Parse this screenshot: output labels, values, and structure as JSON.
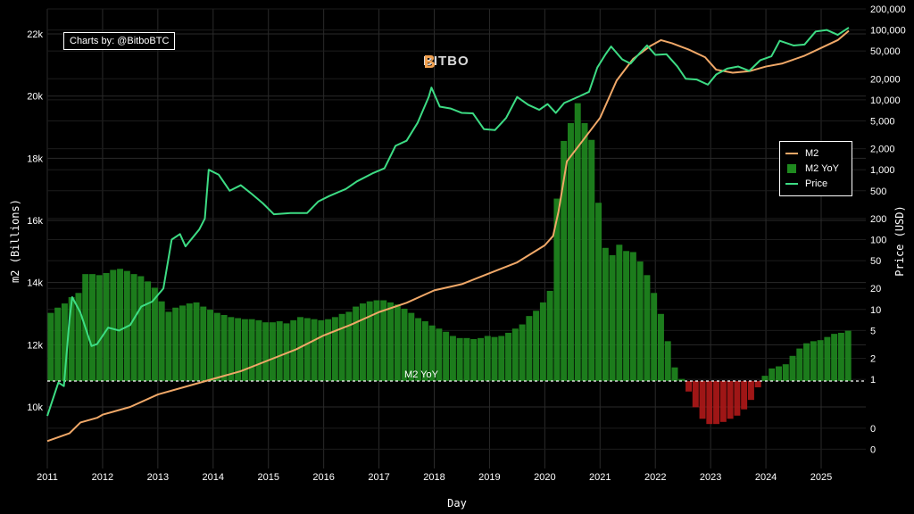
{
  "watermark": {
    "logo_text": "BITBO"
  },
  "credit": {
    "text": "Charts by: @BitboBTC"
  },
  "legend": {
    "placement": "right",
    "items": [
      {
        "label": "M2",
        "color": "#f0a868"
      },
      {
        "label": "M2 YoY",
        "color": "#1f8a1f"
      },
      {
        "label": "Price",
        "color": "#3ddc84"
      }
    ]
  },
  "chart_data": {
    "type": "line",
    "xlabel": "Day",
    "ylabel_left": "m2 (Billions)",
    "ylabel_right": "Price (USD)",
    "x_ticks": [
      "2011",
      "2012",
      "2013",
      "2014",
      "2015",
      "2016",
      "2017",
      "2018",
      "2019",
      "2020",
      "2021",
      "2022",
      "2023",
      "2024",
      "2025"
    ],
    "y_left_ticks": [
      "10k",
      "12k",
      "14k",
      "16k",
      "18k",
      "20k",
      "22k"
    ],
    "y_left_range": [
      8800,
      22400
    ],
    "y_right_ticks": [
      "0",
      "0",
      "1",
      "2",
      "5",
      "10",
      "20",
      "50",
      "100",
      "200",
      "500",
      "1,000",
      "2,000",
      "5,000",
      "10,000",
      "20,000",
      "50,000",
      "100,000",
      "200,000"
    ],
    "y_right_scale": "log",
    "grid": true,
    "reference_line": {
      "label": "M2 YoY",
      "value": 0
    },
    "series": [
      {
        "name": "M2",
        "color": "#f0a868",
        "points": [
          [
            2011.0,
            8900
          ],
          [
            2011.4,
            9150
          ],
          [
            2011.6,
            9500
          ],
          [
            2011.9,
            9650
          ],
          [
            2012.0,
            9750
          ],
          [
            2012.5,
            10000
          ],
          [
            2013.0,
            10400
          ],
          [
            2013.5,
            10650
          ],
          [
            2014.0,
            10900
          ],
          [
            2014.5,
            11150
          ],
          [
            2015.0,
            11500
          ],
          [
            2015.5,
            11850
          ],
          [
            2016.0,
            12300
          ],
          [
            2016.5,
            12650
          ],
          [
            2017.0,
            13050
          ],
          [
            2017.5,
            13350
          ],
          [
            2018.0,
            13750
          ],
          [
            2018.5,
            13950
          ],
          [
            2019.0,
            14300
          ],
          [
            2019.5,
            14650
          ],
          [
            2020.0,
            15200
          ],
          [
            2020.15,
            15500
          ],
          [
            2020.25,
            16300
          ],
          [
            2020.4,
            17900
          ],
          [
            2020.7,
            18600
          ],
          [
            2021.0,
            19300
          ],
          [
            2021.3,
            20500
          ],
          [
            2021.6,
            21200
          ],
          [
            2021.9,
            21600
          ],
          [
            2022.1,
            21800
          ],
          [
            2022.3,
            21700
          ],
          [
            2022.6,
            21500
          ],
          [
            2022.9,
            21250
          ],
          [
            2023.1,
            20850
          ],
          [
            2023.4,
            20750
          ],
          [
            2023.7,
            20800
          ],
          [
            2024.0,
            20950
          ],
          [
            2024.3,
            21050
          ],
          [
            2024.7,
            21300
          ],
          [
            2025.0,
            21550
          ],
          [
            2025.3,
            21800
          ],
          [
            2025.5,
            22100
          ]
        ]
      },
      {
        "name": "Price",
        "color": "#3ddc84",
        "points": [
          [
            2011.0,
            0.3
          ],
          [
            2011.2,
            0.9
          ],
          [
            2011.3,
            0.8
          ],
          [
            2011.4,
            7
          ],
          [
            2011.45,
            15
          ],
          [
            2011.6,
            9
          ],
          [
            2011.8,
            3
          ],
          [
            2011.9,
            3.2
          ],
          [
            2012.1,
            5.5
          ],
          [
            2012.3,
            5
          ],
          [
            2012.5,
            6
          ],
          [
            2012.7,
            11
          ],
          [
            2012.9,
            13
          ],
          [
            2013.1,
            20
          ],
          [
            2013.25,
            100
          ],
          [
            2013.4,
            120
          ],
          [
            2013.5,
            80
          ],
          [
            2013.75,
            140
          ],
          [
            2013.85,
            200
          ],
          [
            2013.92,
            1000
          ],
          [
            2014.1,
            850
          ],
          [
            2014.3,
            500
          ],
          [
            2014.5,
            600
          ],
          [
            2014.7,
            450
          ],
          [
            2014.9,
            330
          ],
          [
            2015.1,
            230
          ],
          [
            2015.4,
            240
          ],
          [
            2015.7,
            240
          ],
          [
            2015.9,
            350
          ],
          [
            2016.1,
            420
          ],
          [
            2016.4,
            530
          ],
          [
            2016.6,
            680
          ],
          [
            2016.9,
            900
          ],
          [
            2017.1,
            1050
          ],
          [
            2017.3,
            2200
          ],
          [
            2017.5,
            2600
          ],
          [
            2017.7,
            4700
          ],
          [
            2017.9,
            11000
          ],
          [
            2017.95,
            15000
          ],
          [
            2018.1,
            8000
          ],
          [
            2018.3,
            7500
          ],
          [
            2018.5,
            6500
          ],
          [
            2018.7,
            6400
          ],
          [
            2018.9,
            3800
          ],
          [
            2019.1,
            3700
          ],
          [
            2019.3,
            5500
          ],
          [
            2019.5,
            11000
          ],
          [
            2019.7,
            8500
          ],
          [
            2019.9,
            7200
          ],
          [
            2020.05,
            8700
          ],
          [
            2020.2,
            6500
          ],
          [
            2020.35,
            9000
          ],
          [
            2020.6,
            11000
          ],
          [
            2020.8,
            13000
          ],
          [
            2020.95,
            29000
          ],
          [
            2021.1,
            45000
          ],
          [
            2021.2,
            58000
          ],
          [
            2021.4,
            38000
          ],
          [
            2021.55,
            33000
          ],
          [
            2021.7,
            45000
          ],
          [
            2021.85,
            60000
          ],
          [
            2022.0,
            44000
          ],
          [
            2022.2,
            45000
          ],
          [
            2022.4,
            30000
          ],
          [
            2022.55,
            20000
          ],
          [
            2022.75,
            19500
          ],
          [
            2022.95,
            16500
          ],
          [
            2023.1,
            23000
          ],
          [
            2023.3,
            28000
          ],
          [
            2023.5,
            30000
          ],
          [
            2023.7,
            26000
          ],
          [
            2023.9,
            37000
          ],
          [
            2024.1,
            42000
          ],
          [
            2024.25,
            70000
          ],
          [
            2024.5,
            60000
          ],
          [
            2024.7,
            62000
          ],
          [
            2024.9,
            95000
          ],
          [
            2025.1,
            100000
          ],
          [
            2025.3,
            85000
          ],
          [
            2025.5,
            108000
          ]
        ]
      },
      {
        "name": "M2 YoY",
        "color": "#1f8a1f",
        "negative_color": "#b01818",
        "unit": "percent",
        "start_year": 2011.0,
        "end_year": 2025.55,
        "values": [
          6.5,
          7.0,
          7.4,
          8.0,
          8.4,
          10.2,
          10.2,
          10.1,
          10.3,
          10.6,
          10.7,
          10.5,
          10.2,
          10.0,
          9.5,
          8.9,
          7.6,
          6.6,
          7.0,
          7.2,
          7.4,
          7.5,
          7.1,
          6.8,
          6.5,
          6.3,
          6.1,
          6.0,
          5.9,
          5.9,
          5.8,
          5.6,
          5.6,
          5.7,
          5.5,
          5.8,
          6.1,
          6.0,
          5.9,
          5.8,
          5.9,
          6.1,
          6.4,
          6.6,
          7.1,
          7.4,
          7.6,
          7.7,
          7.7,
          7.5,
          7.3,
          6.9,
          6.5,
          6.0,
          5.7,
          5.3,
          5.0,
          4.7,
          4.3,
          4.1,
          4.1,
          4.0,
          4.1,
          4.3,
          4.2,
          4.3,
          4.6,
          5.0,
          5.4,
          6.2,
          6.7,
          7.5,
          8.6,
          17.4,
          22.9,
          24.6,
          26.5,
          24.6,
          23.0,
          17.0,
          12.7,
          12.0,
          13.0,
          12.4,
          12.3,
          11.4,
          10.1,
          8.4,
          6.4,
          3.8,
          1.3,
          0.2,
          -1.0,
          -2.5,
          -3.6,
          -4.1,
          -4.1,
          -3.9,
          -3.6,
          -3.3,
          -2.7,
          -1.8,
          -0.6,
          0.5,
          1.2,
          1.4,
          1.6,
          2.4,
          3.1,
          3.6,
          3.8,
          3.9,
          4.2,
          4.5,
          4.6,
          4.8
        ]
      }
    ]
  }
}
